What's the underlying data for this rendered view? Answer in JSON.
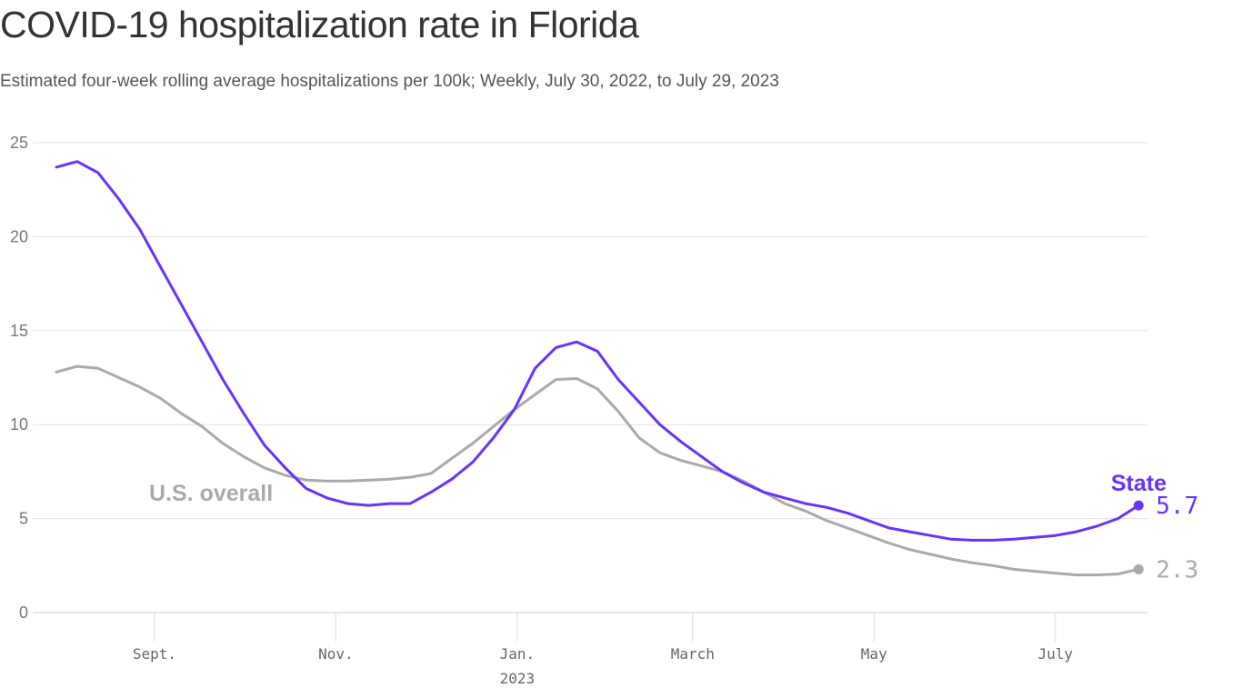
{
  "chart_data": {
    "type": "line",
    "title": "COVID-19 hospitalization rate in Florida",
    "subtitle": "Estimated four-week rolling average hospitalizations per 100k; Weekly, July 30, 2022, to July 29, 2023",
    "x_start": "2022-07-30",
    "x_end": "2023-07-29",
    "x_interval": "weekly",
    "ylim": [
      0,
      25
    ],
    "yticks": [
      "0",
      "5",
      "10",
      "15",
      "20",
      "25"
    ],
    "ytick_values": [
      0,
      5,
      10,
      15,
      20,
      25
    ],
    "xticks": [
      {
        "label": "Sept.",
        "date": "2022-09-01"
      },
      {
        "label": "Nov.",
        "date": "2022-11-01"
      },
      {
        "label": "Jan.",
        "date": "2023-01-01",
        "sublabel": "2023"
      },
      {
        "label": "March",
        "date": "2023-03-01"
      },
      {
        "label": "May",
        "date": "2023-05-01"
      },
      {
        "label": "July",
        "date": "2023-07-01"
      }
    ],
    "grid": true,
    "series": [
      {
        "name": "State",
        "color": "#6633ff",
        "end_label": "5.7",
        "values": [
          23.7,
          24.0,
          23.4,
          22.0,
          20.4,
          18.4,
          16.4,
          14.4,
          12.4,
          10.6,
          8.9,
          7.7,
          6.6,
          6.1,
          5.8,
          5.7,
          5.8,
          5.8,
          6.4,
          7.1,
          8.0,
          9.3,
          10.8,
          13.0,
          14.1,
          14.4,
          13.9,
          12.4,
          11.2,
          10.0,
          9.1,
          8.3,
          7.5,
          6.9,
          6.4,
          6.1,
          5.8,
          5.6,
          5.3,
          4.9,
          4.5,
          4.3,
          4.1,
          3.9,
          3.85,
          3.85,
          3.9,
          4.0,
          4.1,
          4.3,
          4.6,
          5.0,
          5.7
        ]
      },
      {
        "name": "U.S. overall",
        "color": "#aaaaaa",
        "end_label": "2.3",
        "values": [
          12.8,
          13.1,
          13.0,
          12.5,
          12.0,
          11.4,
          10.6,
          9.9,
          9.0,
          8.3,
          7.7,
          7.3,
          7.05,
          7.0,
          7.0,
          7.05,
          7.1,
          7.2,
          7.4,
          8.2,
          9.0,
          9.9,
          10.8,
          11.6,
          12.4,
          12.45,
          11.9,
          10.7,
          9.3,
          8.5,
          8.1,
          7.8,
          7.5,
          7.0,
          6.4,
          5.8,
          5.4,
          4.9,
          4.5,
          4.1,
          3.7,
          3.35,
          3.1,
          2.85,
          2.65,
          2.5,
          2.3,
          2.2,
          2.1,
          2.0,
          2.0,
          2.05,
          2.3
        ]
      }
    ]
  }
}
